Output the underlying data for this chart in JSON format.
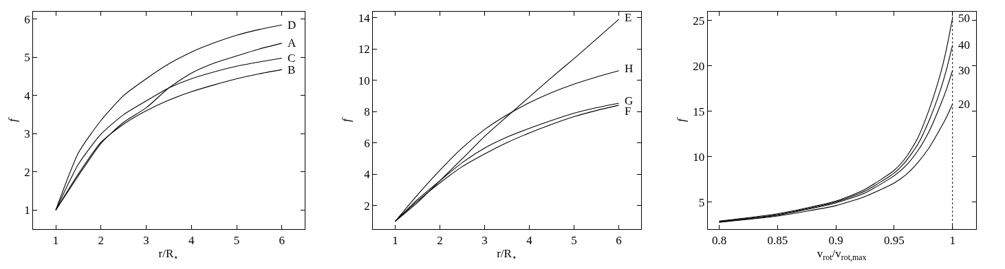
{
  "chart_data": [
    {
      "type": "line",
      "legend": "right",
      "xlabel": "r/R$_{⋆}$",
      "ylabel": "f",
      "xlim": [
        0.5,
        6.5
      ],
      "ylim": [
        0.5,
        6.2
      ],
      "xticks": [
        1,
        2,
        3,
        4,
        5,
        6
      ],
      "yticks": [
        1,
        2,
        3,
        4,
        5,
        6
      ],
      "x": [
        1,
        1.5,
        2,
        2.5,
        3,
        3.5,
        4,
        4.5,
        5,
        5.5,
        6
      ],
      "series": [
        {
          "name": "D",
          "color": "#000000",
          "values": [
            1,
            2.5,
            3.35,
            4.0,
            4.44,
            4.83,
            5.14,
            5.38,
            5.58,
            5.73,
            5.85
          ]
        },
        {
          "name": "A",
          "color": "#000000",
          "values": [
            1,
            1.9,
            2.75,
            3.3,
            3.68,
            4.2,
            4.59,
            4.85,
            5.04,
            5.22,
            5.37
          ]
        },
        {
          "name": "C",
          "color": "#000000",
          "values": [
            1,
            2.2,
            2.99,
            3.5,
            3.86,
            4.2,
            4.44,
            4.62,
            4.77,
            4.88,
            4.98
          ]
        },
        {
          "name": "B",
          "color": "#000000",
          "values": [
            1,
            1.95,
            2.78,
            3.25,
            3.6,
            3.88,
            4.1,
            4.28,
            4.44,
            4.57,
            4.68
          ]
        }
      ]
    },
    {
      "type": "line",
      "legend": "right",
      "xlabel": "r/R$_{⋆}$",
      "ylabel": "f",
      "xlim": [
        0.5,
        6.5
      ],
      "ylim": [
        0.5,
        14.4
      ],
      "xticks": [
        1,
        2,
        3,
        4,
        5,
        6
      ],
      "yticks": [
        2,
        4,
        6,
        8,
        10,
        12,
        14
      ],
      "x": [
        1,
        1.5,
        2,
        2.5,
        3,
        3.5,
        4,
        4.5,
        5,
        5.5,
        6
      ],
      "series": [
        {
          "name": "E",
          "color": "#000000",
          "values": [
            1,
            2.2,
            3.6,
            5.0,
            6.43,
            7.7,
            8.95,
            10.2,
            11.4,
            12.65,
            13.9
          ]
        },
        {
          "name": "H",
          "color": "#000000",
          "values": [
            1,
            2.7,
            4.27,
            5.7,
            6.87,
            7.8,
            8.58,
            9.23,
            9.77,
            10.22,
            10.62
          ]
        },
        {
          "name": "G",
          "color": "#000000",
          "values": [
            1,
            2.4,
            3.6,
            4.75,
            5.68,
            6.38,
            6.94,
            7.45,
            7.91,
            8.26,
            8.55
          ]
        },
        {
          "name": "F",
          "color": "#000000",
          "values": [
            1,
            2.3,
            3.46,
            4.5,
            5.31,
            6.03,
            6.65,
            7.2,
            7.69,
            8.08,
            8.42
          ]
        }
      ]
    },
    {
      "type": "line",
      "legend": "right",
      "xlabel": "v$_{rot}$/v$_{rot,max}$",
      "ylabel": "f",
      "xlim": [
        0.79,
        1.02
      ],
      "ylim": [
        2,
        26
      ],
      "xticks": [
        0.8,
        0.85,
        0.9,
        0.95,
        1
      ],
      "yticks": [
        5,
        10,
        15,
        20,
        25
      ],
      "x": [
        0.8,
        0.85,
        0.9,
        0.925,
        0.95,
        0.96,
        0.97,
        0.98,
        0.99,
        0.995,
        1
      ],
      "ref_lines": [
        {
          "axis": "x",
          "value": 1,
          "line_style": "dotted",
          "color": "#000000"
        }
      ],
      "series": [
        {
          "name": "50",
          "color": "#000000",
          "values": [
            2.9,
            3.7,
            5.1,
            6.4,
            8.5,
            9.9,
            12.0,
            15.2,
            19.3,
            22.0,
            25.3
          ]
        },
        {
          "name": "40",
          "color": "#000000",
          "values": [
            2.85,
            3.6,
            5.0,
            6.2,
            8.2,
            9.5,
            11.3,
            14.0,
            17.5,
            19.7,
            22.3
          ]
        },
        {
          "name": "30",
          "color": "#000000",
          "values": [
            2.8,
            3.55,
            4.9,
            6.0,
            7.9,
            9.0,
            10.6,
            12.8,
            15.8,
            17.5,
            19.5
          ]
        },
        {
          "name": "20",
          "color": "#000000",
          "values": [
            2.75,
            3.45,
            4.6,
            5.6,
            7.1,
            8.0,
            9.3,
            11.0,
            13.2,
            14.4,
            15.8
          ]
        }
      ]
    }
  ]
}
